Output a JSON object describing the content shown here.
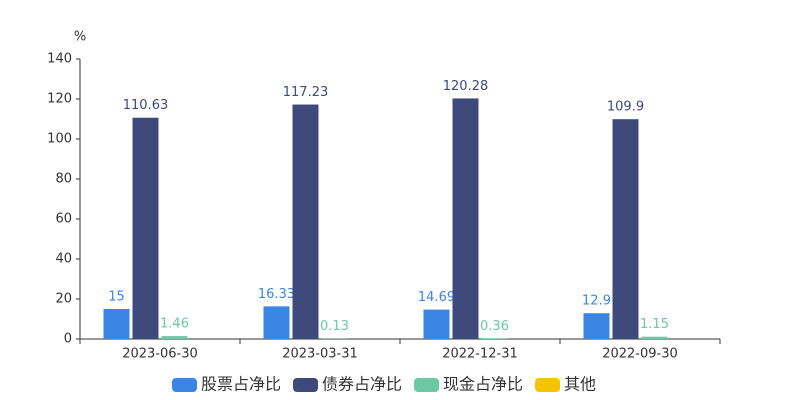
{
  "chart_data": {
    "type": "bar",
    "y_label": "%",
    "categories": [
      "2023-06-30",
      "2023-03-31",
      "2022-12-31",
      "2022-09-30"
    ],
    "series": [
      {
        "name": "股票占净比",
        "color": "#3b86e4",
        "values": [
          15,
          16.33,
          14.69,
          12.9
        ]
      },
      {
        "name": "债券占净比",
        "color": "#3d4a7b",
        "values": [
          110.63,
          117.23,
          120.28,
          109.9
        ]
      },
      {
        "name": "现金占净比",
        "color": "#6dc8a5",
        "values": [
          1.46,
          0.13,
          0.36,
          1.15
        ]
      },
      {
        "name": "其他",
        "color": "#f5c400",
        "values": [
          null,
          null,
          null,
          null
        ]
      }
    ],
    "ylim": [
      0,
      140
    ],
    "yticks": [
      0,
      20,
      40,
      60,
      80,
      100,
      120,
      140
    ],
    "grid": false,
    "legend": "bottom"
  }
}
